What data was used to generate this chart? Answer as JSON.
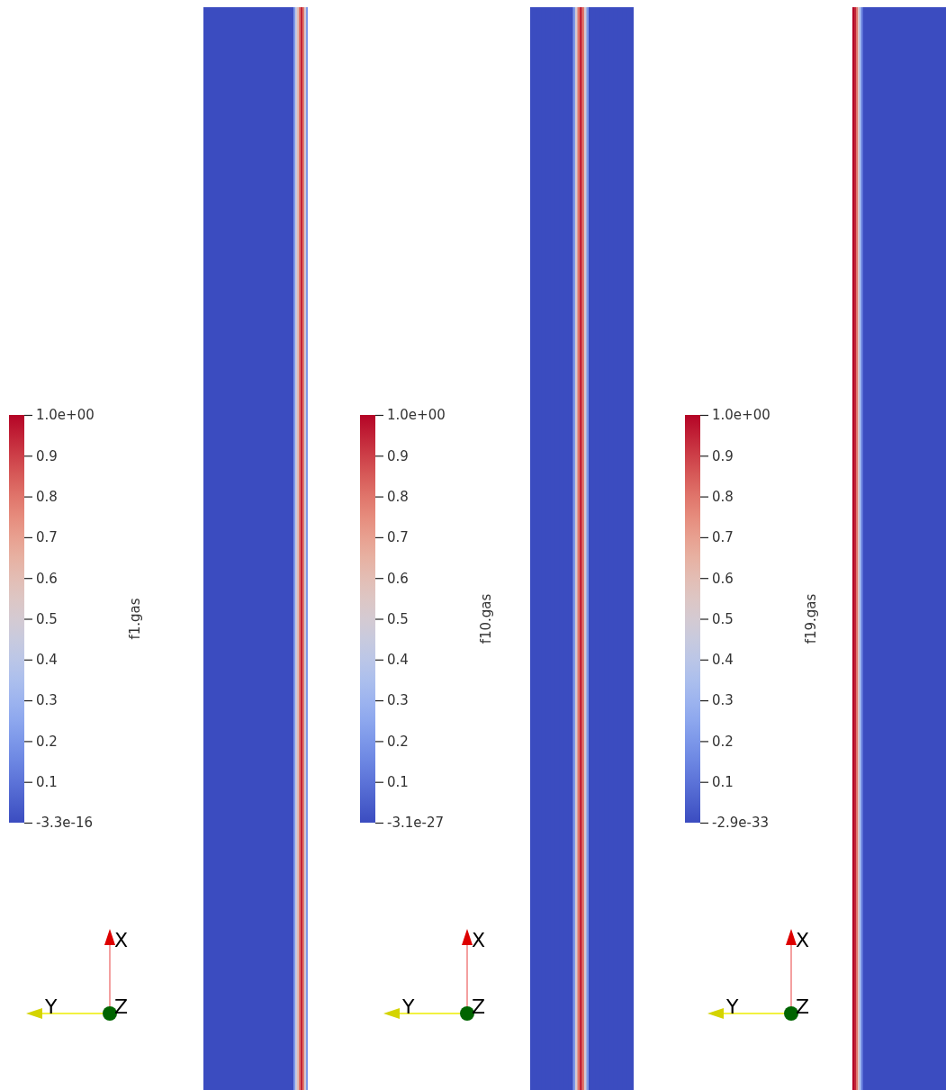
{
  "chart_data": [
    {
      "type": "heatmap",
      "categories": [
        null,
        null,
        null,
        null,
        null,
        null,
        null,
        null,
        null,
        null,
        null,
        null,
        null,
        null,
        null,
        null,
        null,
        null,
        null,
        null,
        null,
        null,
        null,
        null,
        null,
        null,
        null,
        null,
        null,
        null,
        null,
        null,
        null,
        null,
        null,
        null,
        null,
        null,
        null,
        null,
        null,
        null,
        null,
        null,
        null,
        null,
        null,
        null,
        null,
        null,
        null,
        null,
        null,
        null,
        null,
        null,
        null,
        null
      ],
      "y_categories": [
        null
      ],
      "cells": [
        [
          0,
          0,
          0,
          0,
          0,
          0,
          0,
          0,
          0,
          0,
          0,
          0,
          0,
          0,
          0,
          0,
          0,
          0,
          0,
          0,
          0,
          0,
          0,
          0,
          0,
          0,
          0,
          0,
          0,
          0,
          0,
          0,
          0,
          0,
          0,
          0,
          0,
          0,
          0,
          0,
          0,
          0,
          0,
          0,
          0,
          0,
          0,
          0,
          0,
          0,
          0.2,
          0.45,
          0.6,
          0.8,
          0.95,
          0.8,
          0.5,
          0.2
        ]
      ],
      "clim": [
        -3.3e-16,
        1
      ],
      "cticks": [
        {
          "value": -3.3e-16,
          "label": "-3.3e-16"
        },
        0.1,
        0.2,
        0.3,
        0.4,
        0.5,
        0.6,
        0.7,
        0.8,
        0.9,
        {
          "value": 1,
          "label": "1.0e+00"
        }
      ],
      "clabel": "f1.gas",
      "annotations": [
        "X",
        "Y",
        "Z"
      ]
    },
    {
      "type": "heatmap",
      "categories": [
        null,
        null,
        null,
        null,
        null,
        null,
        null,
        null,
        null,
        null,
        null,
        null,
        null,
        null,
        null,
        null,
        null,
        null,
        null,
        null,
        null,
        null,
        null,
        null,
        null,
        null,
        null,
        null,
        null,
        null,
        null,
        null,
        null,
        null,
        null,
        null,
        null,
        null,
        null,
        null,
        null,
        null,
        null,
        null,
        null,
        null
      ],
      "y_categories": [
        null
      ],
      "cells": [
        [
          0,
          0,
          0,
          0,
          0,
          0,
          0,
          0,
          0,
          0,
          0,
          0,
          0,
          0,
          0,
          0,
          0,
          0,
          0,
          0.2,
          0.5,
          0.8,
          0.95,
          0.8,
          0.5,
          0.2,
          0,
          0,
          0,
          0,
          0,
          0,
          0,
          0,
          0,
          0,
          0,
          0,
          0,
          0,
          0,
          0,
          0,
          0,
          0,
          0
        ]
      ],
      "clim": [
        -3.1e-27,
        1
      ],
      "cticks": [
        {
          "value": -3.1e-27,
          "label": "-3.1e-27"
        },
        {
          "value": 0.1,
          "label": "0.1"
        },
        {
          "value": 0.2,
          "label": "0.2"
        },
        {
          "value": 0.3,
          "label": "0.3"
        },
        {
          "value": 0.4,
          "label": "0.4"
        },
        {
          "value": 0.5,
          "label": "0.5"
        },
        {
          "value": 0.6,
          "label": "0.6"
        },
        {
          "value": 0.7,
          "label": "0.7"
        },
        {
          "value": 0.8,
          "label": "0.8"
        },
        {
          "value": 0.9,
          "label": "0.9"
        },
        {
          "value": 1,
          "label": "1.0e+00"
        }
      ],
      "clabel": "f10.gas",
      "annotations": [
        "X",
        "Y",
        "Z"
      ]
    },
    {
      "type": "heatmap",
      "categories": [
        null,
        null,
        null,
        null,
        null,
        null,
        null,
        null,
        null,
        null,
        null,
        null,
        null,
        null,
        null,
        null,
        null,
        null,
        null,
        null,
        null,
        null,
        null,
        null,
        null,
        null,
        null,
        null,
        null,
        null,
        null,
        null,
        null,
        null,
        null,
        null,
        null,
        null,
        null,
        null,
        null,
        null,
        null,
        null,
        null,
        null,
        null,
        null,
        null,
        null,
        null,
        null
      ],
      "y_categories": [
        null
      ],
      "cells": [
        [
          1,
          0.95,
          0.8,
          0.55,
          0.3,
          0.1,
          0,
          0,
          0,
          0,
          0,
          0,
          0,
          0,
          0,
          0,
          0,
          0,
          0,
          0,
          0,
          0,
          0,
          0,
          0,
          0,
          0,
          0,
          0,
          0,
          0,
          0,
          0,
          0,
          0,
          0,
          0,
          0,
          0,
          0,
          0,
          0,
          0,
          0,
          0,
          0,
          0,
          0,
          0,
          0,
          0,
          0
        ]
      ],
      "clim": [
        -2.9e-33,
        1
      ],
      "cticks": [
        {
          "value": -2.9e-33,
          "label": "-2.9e-33"
        },
        0.1,
        0.2,
        0.3,
        0.4,
        0.5,
        0.6,
        0.7,
        0.8,
        0.9,
        {
          "value": 1,
          "label": "1.0e+00"
        }
      ],
      "clabel": "f19.gas",
      "annotations": [
        "X",
        "Y",
        "Z"
      ]
    }
  ]
}
